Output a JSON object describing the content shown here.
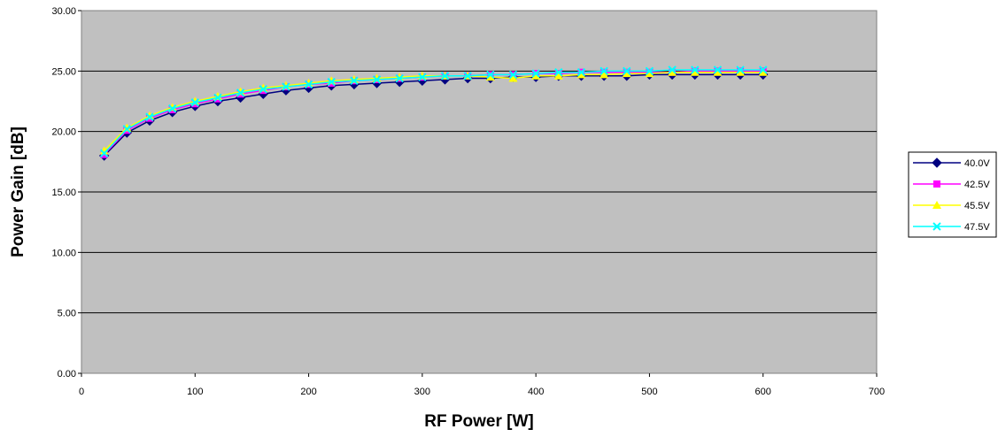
{
  "chart_data": {
    "type": "line",
    "title": "",
    "xlabel": "RF Power [W]",
    "ylabel": "Power Gain [dB]",
    "xlim": [
      0,
      700
    ],
    "ylim": [
      0,
      30
    ],
    "x_ticks": [
      "0",
      "100",
      "200",
      "300",
      "400",
      "500",
      "600",
      "700"
    ],
    "y_ticks": [
      "0.00",
      "5.00",
      "10.00",
      "15.00",
      "20.00",
      "25.00",
      "30.00"
    ],
    "grid": "horizontal",
    "legend_position": "right",
    "plot_background": "#c0c0c0",
    "x": [
      20,
      40,
      60,
      80,
      100,
      120,
      140,
      160,
      180,
      200,
      220,
      240,
      260,
      280,
      300,
      320,
      340,
      360,
      380,
      400,
      420,
      440,
      460,
      480,
      500,
      520,
      540,
      560,
      580,
      600
    ],
    "series": [
      {
        "name": "40.0V",
        "color": "#000080",
        "marker": "diamond",
        "values": [
          18.0,
          19.9,
          20.9,
          21.6,
          22.1,
          22.5,
          22.8,
          23.1,
          23.4,
          23.6,
          23.8,
          23.9,
          24.0,
          24.1,
          24.2,
          24.3,
          24.4,
          24.4,
          24.5,
          24.5,
          24.6,
          24.6,
          24.6,
          24.6,
          24.7,
          24.7,
          24.7,
          24.7,
          24.7,
          24.7
        ]
      },
      {
        "name": "42.5V",
        "color": "#ff00ff",
        "marker": "square",
        "values": [
          18.1,
          20.1,
          21.1,
          21.8,
          22.3,
          22.7,
          23.1,
          23.4,
          23.7,
          23.9,
          24.0,
          24.2,
          24.3,
          24.4,
          24.5,
          24.6,
          24.6,
          24.7,
          24.7,
          24.8,
          24.8,
          24.9,
          24.9,
          24.9,
          24.9,
          24.9,
          25.0,
          25.0,
          25.0,
          25.0
        ]
      },
      {
        "name": "45.5V",
        "color": "#ffff00",
        "marker": "triangle",
        "values": [
          18.4,
          20.3,
          21.3,
          22.0,
          22.5,
          22.9,
          23.3,
          23.6,
          23.8,
          24.0,
          24.2,
          24.3,
          24.4,
          24.5,
          24.6,
          24.6,
          24.6,
          24.5,
          24.4,
          24.6,
          24.6,
          24.7,
          24.7,
          24.8,
          24.8,
          24.9,
          24.9,
          24.9,
          24.9,
          24.9
        ]
      },
      {
        "name": "47.5V",
        "color": "#00ffff",
        "marker": "x",
        "values": [
          18.2,
          20.2,
          21.2,
          21.9,
          22.4,
          22.8,
          23.2,
          23.5,
          23.7,
          23.9,
          24.1,
          24.2,
          24.3,
          24.4,
          24.5,
          24.6,
          24.6,
          24.7,
          24.7,
          24.8,
          24.9,
          24.9,
          25.0,
          25.0,
          25.0,
          25.1,
          25.1,
          25.1,
          25.1,
          25.1
        ]
      }
    ]
  }
}
